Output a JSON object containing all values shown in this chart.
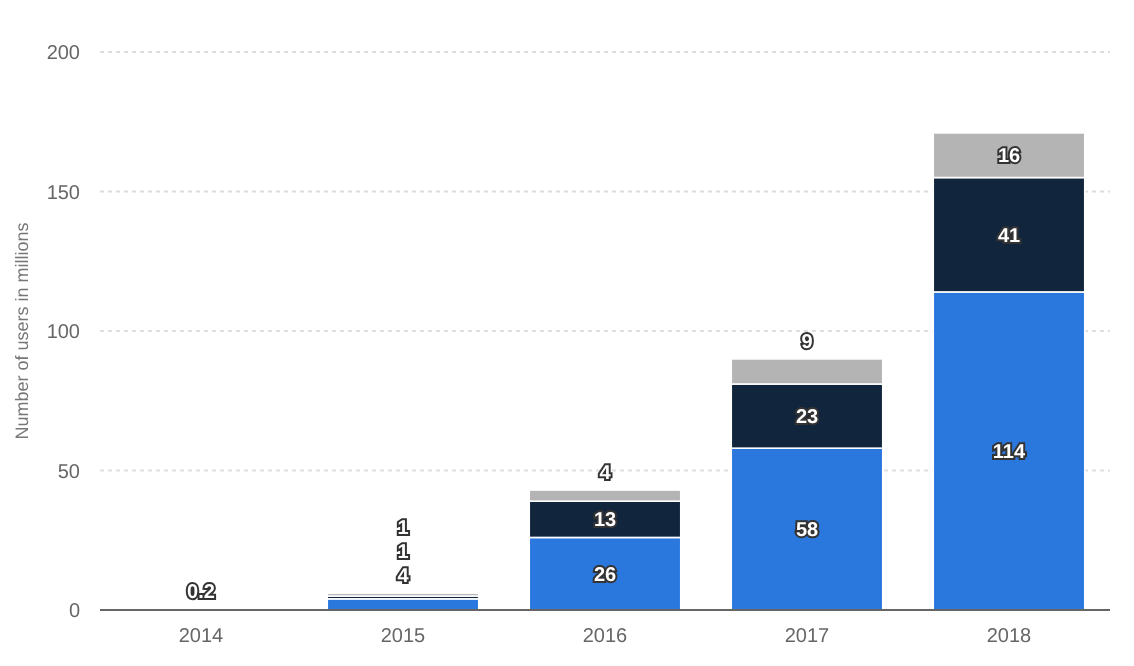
{
  "chart_data": {
    "type": "bar",
    "ylabel": "Number of users in millions",
    "categories": [
      "2014",
      "2015",
      "2016",
      "2017",
      "2018"
    ],
    "series": [
      {
        "color": "#2a77dd",
        "values": [
          0.2,
          4,
          26,
          58,
          114
        ]
      },
      {
        "color": "#11263d",
        "values": [
          null,
          1,
          13,
          23,
          41
        ]
      },
      {
        "color": "#b4b4b4",
        "values": [
          null,
          1,
          4,
          9,
          16
        ]
      }
    ],
    "stacked": true,
    "ylim": [
      0,
      200
    ],
    "yticks": [
      0,
      50,
      100,
      150,
      200
    ],
    "grid": "y",
    "data_labels": true
  }
}
